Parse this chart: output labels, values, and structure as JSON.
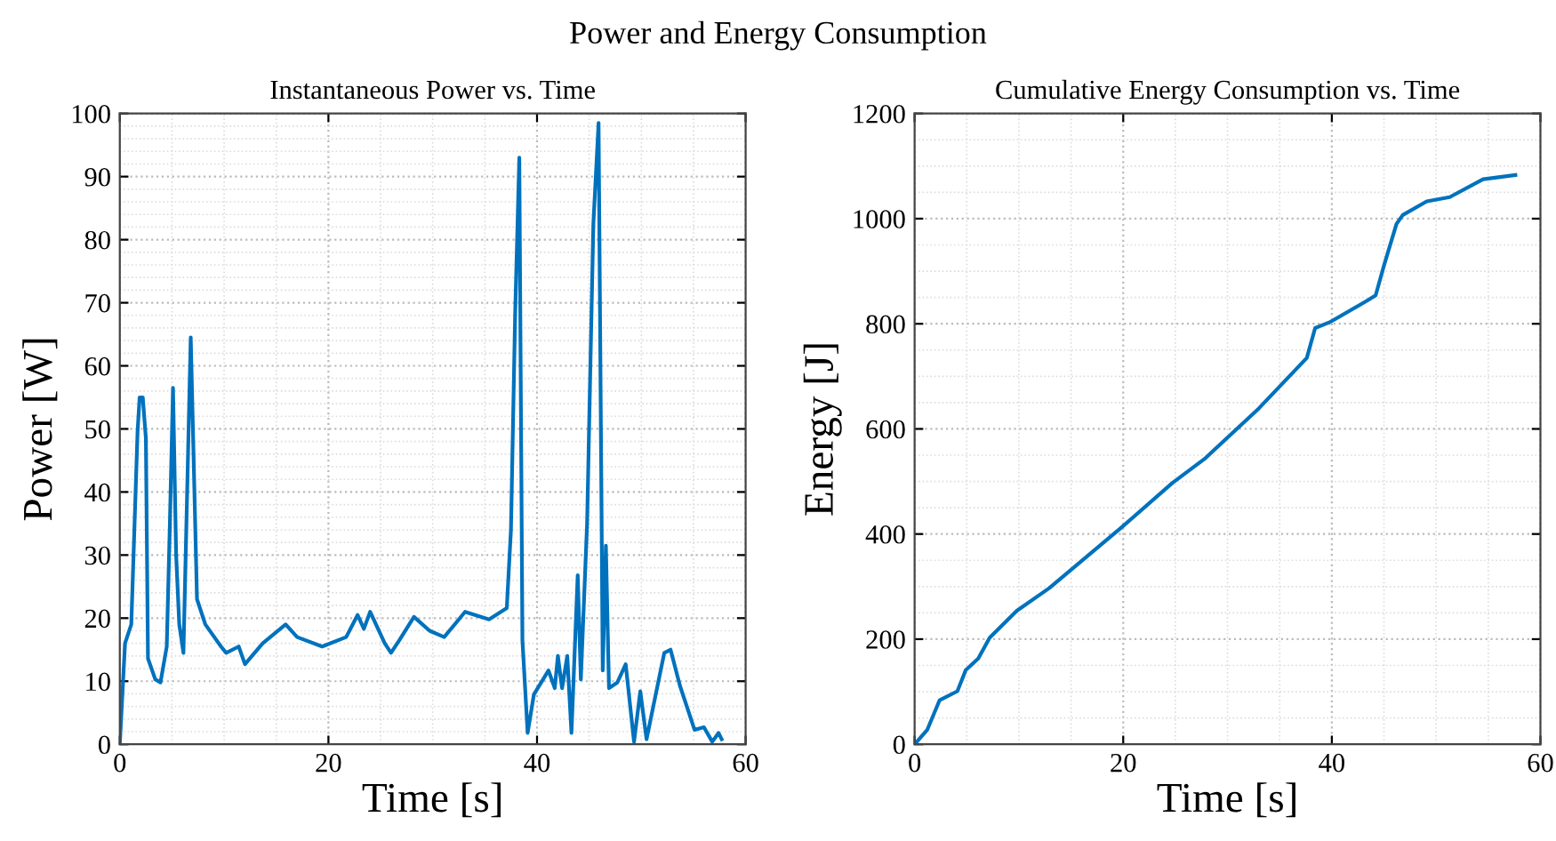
{
  "chart_data": [
    {
      "type": "line",
      "annotations": [
        "Power and Energy Consumption"
      ],
      "title": "Instantaneous Power vs. Time",
      "xlabel": "Time [s]",
      "ylabel": "Power [W]",
      "xlim": [
        0,
        60
      ],
      "xticks": [
        0,
        20,
        40,
        60
      ],
      "ylim": [
        0,
        100
      ],
      "yticks": [
        0,
        10,
        20,
        30,
        40,
        50,
        60,
        70,
        80,
        90,
        100
      ],
      "grid": true,
      "legend": false,
      "series": [
        {
          "color": "#0072bd",
          "x": [
            0,
            0.5,
            1.1,
            1.7,
            1.9,
            2.2,
            2.5,
            2.7,
            3.4,
            3.9,
            4.5,
            4.8,
            5.1,
            5.4,
            5.7,
            6.1,
            6.8,
            7.4,
            8.2,
            9.7,
            10.2,
            11.4,
            12,
            13.7,
            15.9,
            17,
            19.4,
            21.7,
            22.8,
            23.4,
            24,
            25.4,
            26,
            26.8,
            28.2,
            29.7,
            31.1,
            33.1,
            35.4,
            37.1,
            37.5,
            37.9,
            38.3,
            38.6,
            39.1,
            39.7,
            41.1,
            41.7,
            42,
            42.4,
            42.9,
            43.3,
            43.9,
            44.2,
            44.8,
            45.4,
            45.9,
            46.3,
            46.6,
            46.9,
            47.7,
            48.5,
            49.3,
            49.9,
            50.5,
            52.2,
            52.8,
            53.7,
            55.1,
            56,
            56.8,
            57.4,
            57.7
          ],
          "values": [
            0,
            16,
            19,
            49.5,
            55,
            55,
            48.5,
            13.6,
            10.3,
            9.8,
            15.5,
            35,
            56.5,
            30,
            19,
            14.5,
            64.5,
            23,
            19,
            15.5,
            14.5,
            15.5,
            12.7,
            16,
            19,
            17,
            15.5,
            17,
            20.5,
            18.3,
            21,
            16,
            14.5,
            16.5,
            20.2,
            18,
            17,
            21,
            19.8,
            21.6,
            34,
            68,
            93,
            16.5,
            1.8,
            7.9,
            11.7,
            8.9,
            14,
            8.9,
            14,
            1.8,
            26.8,
            10.3,
            35,
            82.5,
            98.5,
            11.7,
            31.5,
            8.9,
            9.8,
            12.7,
            0.4,
            8.4,
            0.8,
            14.5,
            15,
            9.3,
            2.3,
            2.7,
            0.4,
            1.8,
            0.8
          ]
        }
      ]
    },
    {
      "type": "line",
      "title": "Cumulative Energy Consumption vs. Time",
      "xlabel": "Time [s]",
      "ylabel": "Energy [J]",
      "xlim": [
        0,
        60
      ],
      "xticks": [
        0,
        20,
        40,
        60
      ],
      "ylim": [
        0,
        1200
      ],
      "yticks": [
        0,
        200,
        400,
        600,
        800,
        1000,
        1200
      ],
      "grid": true,
      "legend": false,
      "series": [
        {
          "color": "#0072bd",
          "x": [
            0,
            1.2,
            2.4,
            4.1,
            4.9,
            6.1,
            7.2,
            9.8,
            12.9,
            19.8,
            24.7,
            27.8,
            33,
            37.6,
            38.4,
            39.8,
            43.3,
            44.2,
            45,
            46.2,
            46.8,
            49.1,
            51.3,
            54.5,
            57.6
          ],
          "values": [
            0,
            27,
            84,
            101,
            141,
            163,
            203,
            254,
            297,
            412,
            497,
            543,
            639,
            735,
            792,
            803,
            843,
            854,
            911,
            990,
            1007,
            1033,
            1041,
            1075,
            1083
          ]
        }
      ]
    }
  ]
}
